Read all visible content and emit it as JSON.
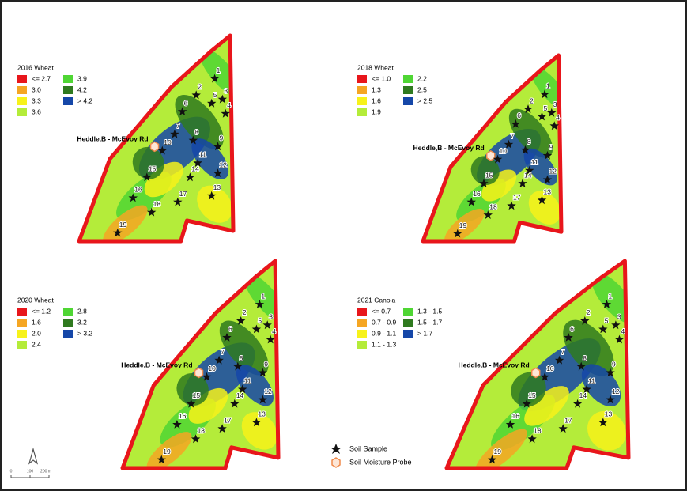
{
  "panels": [
    {
      "title": "2016 Wheat",
      "legend": [
        {
          "label": "<= 2.7",
          "color": "#e8161b"
        },
        {
          "label": "3.0",
          "color": "#f5a623"
        },
        {
          "label": "3.3",
          "color": "#f7f21a"
        },
        {
          "label": "3.6",
          "color": "#b4ec3a"
        },
        {
          "label": "3.9",
          "color": "#4fd634"
        },
        {
          "label": "4.2",
          "color": "#2f7a1f"
        },
        {
          "label": "> 4.2",
          "color": "#1547a8"
        }
      ]
    },
    {
      "title": "2018 Wheat",
      "legend": [
        {
          "label": "<= 1.0",
          "color": "#e8161b"
        },
        {
          "label": "1.3",
          "color": "#f5a623"
        },
        {
          "label": "1.6",
          "color": "#f7f21a"
        },
        {
          "label": "1.9",
          "color": "#b4ec3a"
        },
        {
          "label": "2.2",
          "color": "#4fd634"
        },
        {
          "label": "2.5",
          "color": "#2f7a1f"
        },
        {
          "label": "> 2.5",
          "color": "#1547a8"
        }
      ]
    },
    {
      "title": "2020 Wheat",
      "legend": [
        {
          "label": "<= 1.2",
          "color": "#e8161b"
        },
        {
          "label": "1.6",
          "color": "#f5a623"
        },
        {
          "label": "2.0",
          "color": "#f7f21a"
        },
        {
          "label": "2.4",
          "color": "#b4ec3a"
        },
        {
          "label": "2.8",
          "color": "#4fd634"
        },
        {
          "label": "3.2",
          "color": "#2f7a1f"
        },
        {
          "label": "> 3.2",
          "color": "#1547a8"
        }
      ]
    },
    {
      "title": "2021 Canola",
      "legend": [
        {
          "label": "<= 0.7",
          "color": "#e8161b"
        },
        {
          "label": "0.7 - 0.9",
          "color": "#f5a623"
        },
        {
          "label": "0.9 - 1.1",
          "color": "#f7f21a"
        },
        {
          "label": "1.1 - 1.3",
          "color": "#b4ec3a"
        },
        {
          "label": "1.3 - 1.5",
          "color": "#4fd634"
        },
        {
          "label": "1.5 - 1.7",
          "color": "#2f7a1f"
        },
        {
          "label": "> 1.7",
          "color": "#1547a8"
        }
      ]
    }
  ],
  "site_label": "Heddle,B - McEvoy Rd",
  "sample_ids": [
    "1",
    "2",
    "3",
    "4",
    "5",
    "6",
    "7",
    "8",
    "9",
    "10",
    "11",
    "12",
    "13",
    "14",
    "15",
    "16",
    "17",
    "18",
    "19"
  ],
  "map_legend": {
    "soil_sample": "Soil Sample",
    "probe": "Soil Moisture Probe"
  },
  "scale_bar": [
    "0",
    "100",
    "200 m"
  ]
}
